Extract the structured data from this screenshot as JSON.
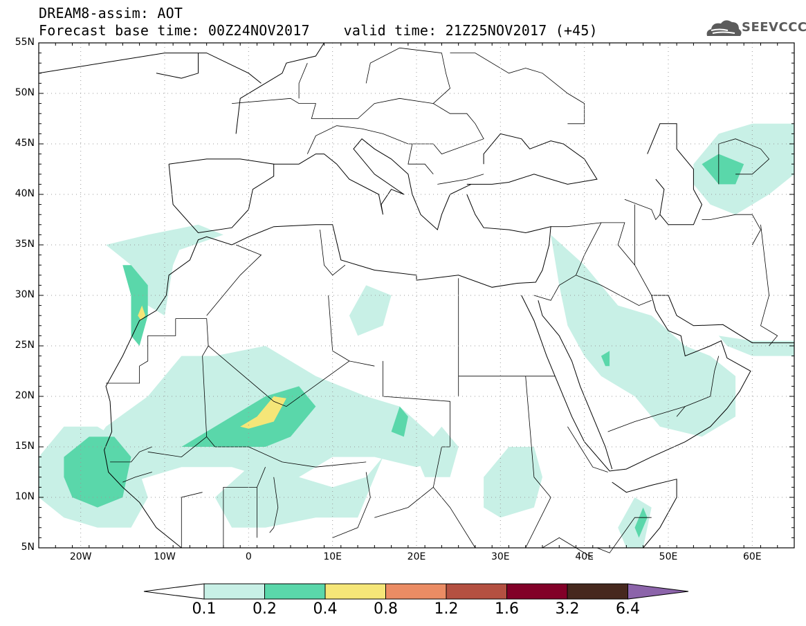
{
  "title_line1": "DREAM8-assim: AOT",
  "title_line2": "Forecast base time: 00Z24NOV2017    valid time: 21Z25NOV2017 (+45)",
  "logo": {
    "text": "SEEVCCC",
    "icon": "cloud-icon"
  },
  "map": {
    "lon_range": [
      -25,
      65
    ],
    "lat_range": [
      5,
      55
    ],
    "x_ticks": [
      {
        "lon": -20,
        "label": "20W"
      },
      {
        "lon": -10,
        "label": "10W"
      },
      {
        "lon": 0,
        "label": "0"
      },
      {
        "lon": 10,
        "label": "10E"
      },
      {
        "lon": 20,
        "label": "20E"
      },
      {
        "lon": 30,
        "label": "30E"
      },
      {
        "lon": 40,
        "label": "40E"
      },
      {
        "lon": 50,
        "label": "50E"
      },
      {
        "lon": 60,
        "label": "60E"
      }
    ],
    "y_ticks": [
      {
        "lat": 55,
        "label": "55N"
      },
      {
        "lat": 50,
        "label": "50N"
      },
      {
        "lat": 45,
        "label": "45N"
      },
      {
        "lat": 40,
        "label": "40N"
      },
      {
        "lat": 35,
        "label": "35N"
      },
      {
        "lat": 30,
        "label": "30N"
      },
      {
        "lat": 25,
        "label": "25N"
      },
      {
        "lat": 20,
        "label": "20N"
      },
      {
        "lat": 15,
        "label": "15N"
      },
      {
        "lat": 10,
        "label": "10N"
      },
      {
        "lat": 5,
        "label": "5N"
      }
    ],
    "grid": "dotted"
  },
  "colorbar": {
    "labels": [
      "0.1",
      "0.2",
      "0.4",
      "0.8",
      "1.2",
      "1.6",
      "3.2",
      "6.4"
    ],
    "colors": [
      "#ffffff",
      "#c8f0e6",
      "#5ad7aa",
      "#f5e678",
      "#eb8c64",
      "#b45041",
      "#820028",
      "#46281e",
      "#8c64aa"
    ]
  }
}
